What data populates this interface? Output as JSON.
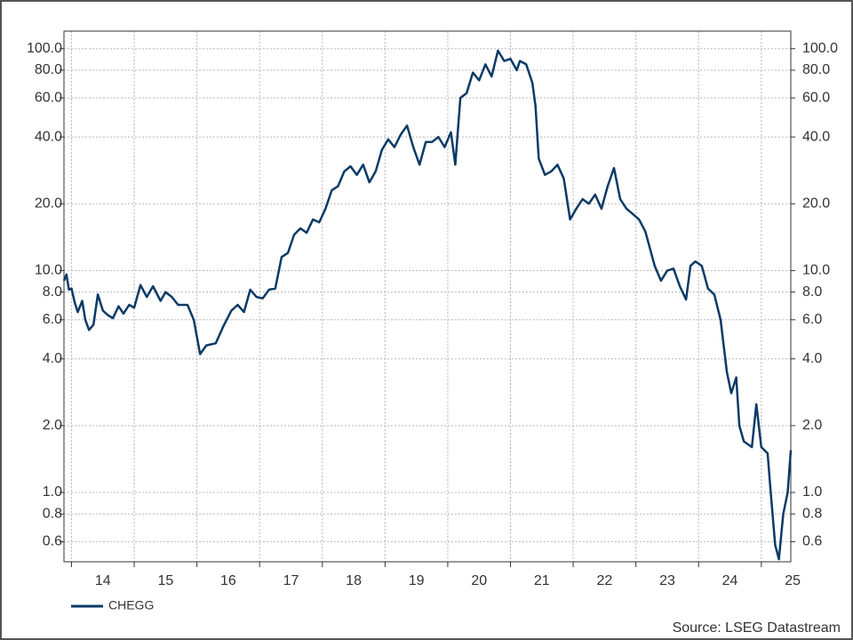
{
  "chart_data": {
    "type": "line",
    "ylog": true,
    "grid": true,
    "legend": "bottom-left",
    "source": "Source: LSEG Datastream",
    "xlim": [
      13.88,
      25.47
    ],
    "xticks": [
      {
        "value": 14,
        "label": "14"
      },
      {
        "value": 15,
        "label": "15"
      },
      {
        "value": 16,
        "label": "16"
      },
      {
        "value": 17,
        "label": "17"
      },
      {
        "value": 18,
        "label": "18"
      },
      {
        "value": 19,
        "label": "19"
      },
      {
        "value": 20,
        "label": "20"
      },
      {
        "value": 21,
        "label": "21"
      },
      {
        "value": 22,
        "label": "22"
      },
      {
        "value": 23,
        "label": "23"
      },
      {
        "value": 24,
        "label": "24"
      },
      {
        "value": 25,
        "label": "25"
      }
    ],
    "ylim": [
      0.487,
      120
    ],
    "yticks": [
      0.6,
      0.8,
      {
        "value": 1,
        "label": "1.0"
      },
      {
        "value": 2,
        "label": "2.0"
      },
      {
        "value": 4,
        "label": "4.0"
      },
      {
        "value": 6,
        "label": "6.0"
      },
      {
        "value": 8,
        "label": "8.0"
      },
      {
        "value": 10,
        "label": "10.0"
      },
      {
        "value": 20,
        "label": "20.0"
      },
      {
        "value": 40,
        "label": "40.0"
      },
      {
        "value": 60,
        "label": "60.0"
      },
      {
        "value": 80,
        "label": "80.0"
      },
      {
        "value": 100,
        "label": "100.0"
      }
    ],
    "x": [
      13.88,
      13.92,
      13.96,
      14.0,
      14.05,
      14.1,
      14.17,
      14.22,
      14.28,
      14.35,
      14.42,
      14.5,
      14.58,
      14.66,
      14.75,
      14.83,
      14.92,
      15.0,
      15.1,
      15.2,
      15.3,
      15.42,
      15.5,
      15.6,
      15.7,
      15.85,
      15.95,
      16.05,
      16.15,
      16.3,
      16.42,
      16.55,
      16.65,
      16.75,
      16.85,
      16.95,
      17.05,
      17.15,
      17.25,
      17.35,
      17.45,
      17.55,
      17.65,
      17.75,
      17.85,
      17.95,
      18.05,
      18.15,
      18.25,
      18.35,
      18.45,
      18.55,
      18.65,
      18.75,
      18.85,
      18.95,
      19.05,
      19.15,
      19.25,
      19.35,
      19.45,
      19.55,
      19.65,
      19.75,
      19.85,
      19.95,
      20.05,
      20.12,
      20.2,
      20.3,
      20.4,
      20.5,
      20.6,
      20.7,
      20.8,
      20.9,
      21.0,
      21.1,
      21.15,
      21.25,
      21.35,
      21.4,
      21.45,
      21.55,
      21.65,
      21.75,
      21.85,
      21.95,
      22.05,
      22.15,
      22.25,
      22.35,
      22.45,
      22.55,
      22.65,
      22.75,
      22.85,
      22.95,
      23.05,
      23.15,
      23.3,
      23.4,
      23.5,
      23.6,
      23.7,
      23.8,
      23.87,
      23.95,
      24.05,
      24.15,
      24.25,
      24.35,
      24.45,
      24.52,
      24.6,
      24.65,
      24.72,
      24.85,
      24.92,
      25.0,
      25.1,
      25.15,
      25.22,
      25.28,
      25.35,
      25.42,
      25.47
    ],
    "series": [
      {
        "name": "CHEGG",
        "color": "#0b3a66",
        "values": [
          9,
          9.6,
          8.2,
          8.3,
          7.2,
          6.5,
          7.3,
          6.0,
          5.4,
          5.7,
          7.8,
          6.6,
          6.3,
          6.1,
          6.9,
          6.4,
          7.0,
          6.8,
          8.6,
          7.6,
          8.5,
          7.3,
          8.0,
          7.6,
          7.0,
          7.0,
          6.0,
          4.2,
          4.6,
          4.7,
          5.6,
          6.6,
          7.0,
          6.5,
          8.2,
          7.6,
          7.5,
          8.2,
          8.3,
          11.5,
          12,
          14.5,
          15.5,
          14.8,
          17,
          16.5,
          19,
          23,
          24,
          28,
          29.5,
          27,
          30,
          25,
          28,
          35,
          39,
          36,
          41,
          45,
          36,
          30,
          38,
          38,
          40,
          36,
          42,
          30,
          60,
          63,
          78,
          72,
          85,
          75,
          98,
          88,
          90,
          80,
          88,
          85,
          70,
          55,
          32,
          27,
          28,
          30,
          26,
          17,
          19,
          21,
          20,
          22,
          19,
          24,
          29,
          21,
          19,
          18,
          17,
          15,
          10.5,
          9.0,
          10.0,
          10.2,
          8.5,
          7.4,
          10.5,
          11.0,
          10.5,
          8.3,
          7.8,
          6.0,
          3.5,
          2.8,
          3.3,
          2.0,
          1.7,
          1.6,
          2.5,
          1.6,
          1.5,
          1.0,
          0.58,
          0.5,
          0.8,
          1.0,
          1.55
        ]
      }
    ]
  }
}
